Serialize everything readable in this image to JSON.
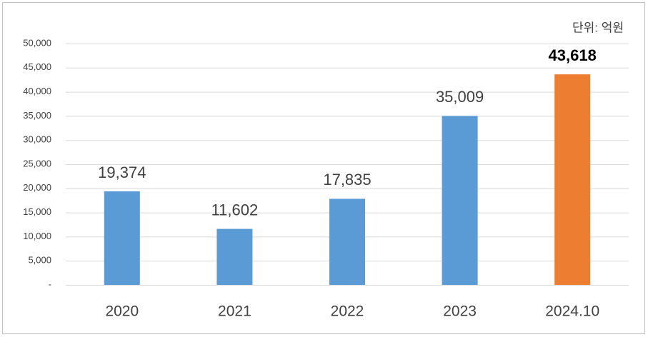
{
  "chart_data": {
    "type": "bar",
    "annotation": "단위: 억원",
    "categories": [
      "2020",
      "2021",
      "2022",
      "2023",
      "2024.10"
    ],
    "values": [
      19374,
      11602,
      17835,
      35009,
      43618
    ],
    "value_labels": [
      "19,374",
      "11,602",
      "17,835",
      "35,009",
      "43,618"
    ],
    "colors": [
      "#5b9bd5",
      "#5b9bd5",
      "#5b9bd5",
      "#5b9bd5",
      "#ed7d31"
    ],
    "emphasis": [
      false,
      false,
      false,
      false,
      true
    ],
    "ylim": [
      0,
      50000
    ],
    "yticks": [
      {
        "value": 0,
        "label": "-"
      },
      {
        "value": 5000,
        "label": "5,000"
      },
      {
        "value": 10000,
        "label": "10,000"
      },
      {
        "value": 15000,
        "label": "15,000"
      },
      {
        "value": 20000,
        "label": "20,000"
      },
      {
        "value": 25000,
        "label": "25,000"
      },
      {
        "value": 30000,
        "label": "30,000"
      },
      {
        "value": 35000,
        "label": "35,000"
      },
      {
        "value": 40000,
        "label": "40,000"
      },
      {
        "value": 45000,
        "label": "45,000"
      },
      {
        "value": 50000,
        "label": "50,000"
      }
    ],
    "grid": true
  }
}
